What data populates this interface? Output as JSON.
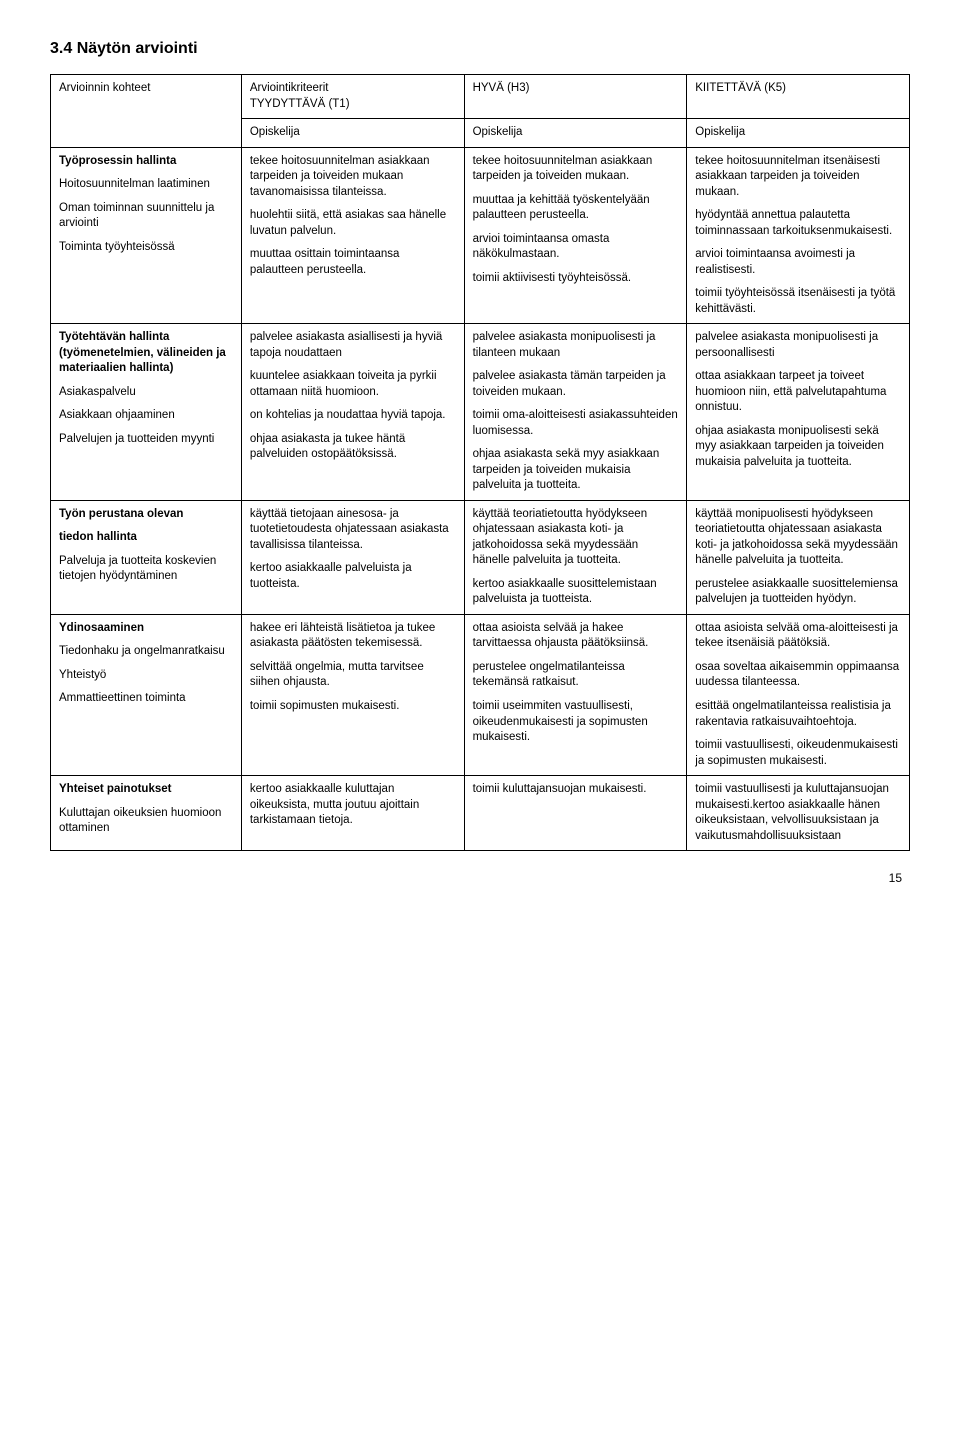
{
  "section_title": "3.4 Näytön arviointi",
  "page_number": "15",
  "table": {
    "header_row": {
      "c1": "Arvioinnin kohteet",
      "c2_line1": "Arviointikriteerit",
      "c2_line2": "TYYDYTTÄVÄ (T1)",
      "c3": "HYVÄ (H3)",
      "c4": "KIITETTÄVÄ (K5)"
    },
    "subheader": {
      "c2": "Opiskelija",
      "c3": "Opiskelija",
      "c4": "Opiskelija"
    },
    "rows": [
      {
        "c1": [
          {
            "b": true,
            "t": "Työprosessin hallinta"
          },
          {
            "b": false,
            "t": "Hoitosuunnitelman laatiminen"
          },
          {
            "b": false,
            "t": "Oman toiminnan suunnittelu ja arviointi"
          },
          {
            "b": false,
            "t": "Toiminta työyhteisössä"
          }
        ],
        "c2": [
          "tekee hoitosuunnitelman asiakkaan tarpeiden ja toiveiden mukaan tavanomaisissa tilanteissa.",
          "huolehtii siitä, että asiakas saa hänelle luvatun palvelun.",
          "muuttaa osittain toimintaansa palautteen perusteella."
        ],
        "c3": [
          "tekee hoitosuunnitelman asiakkaan tarpeiden ja toiveiden mukaan.",
          "muuttaa ja kehittää työskentelyään palautteen perusteella.",
          "arvioi toimintaansa omasta näkökulmastaan.",
          "toimii aktiivisesti työyhteisössä."
        ],
        "c4": [
          "tekee hoitosuunnitelman itsenäisesti asiakkaan tarpeiden ja toiveiden mukaan.",
          "hyödyntää annettua palautetta toiminnassaan tarkoituksenmukaisesti.",
          "arvioi toimintaansa avoimesti ja realistisesti.",
          "toimii työyhteisössä itsenäisesti ja työtä kehittävästi."
        ]
      },
      {
        "c1": [
          {
            "b": true,
            "t": "Työtehtävän hallinta (työmenetelmien, välineiden ja materiaalien hallinta)"
          },
          {
            "b": false,
            "t": "Asiakaspalvelu"
          },
          {
            "b": false,
            "t": "Asiakkaan ohjaaminen"
          },
          {
            "b": false,
            "t": "Palvelujen ja tuotteiden myynti"
          }
        ],
        "c2": [
          "palvelee asiakasta asiallisesti ja hyviä tapoja noudattaen",
          "kuuntelee asiakkaan toiveita ja pyrkii ottamaan niitä huomioon.",
          "on kohtelias ja noudattaa hyviä tapoja.",
          "ohjaa asiakasta ja tukee häntä palveluiden ostopäätöksissä."
        ],
        "c3": [
          "palvelee asiakasta monipuolisesti ja tilanteen mukaan",
          "palvelee asiakasta tämän tarpeiden ja toiveiden mukaan.",
          "toimii oma-aloitteisesti asiakassuhteiden luomisessa.",
          "ohjaa asiakasta sekä myy asiakkaan tarpeiden ja toiveiden mukaisia palveluita ja tuotteita."
        ],
        "c4": [
          "palvelee asiakasta monipuolisesti ja persoonallisesti",
          "ottaa asiakkaan tarpeet ja toiveet huomioon niin, että palvelutapahtuma onnistuu.",
          "ohjaa asiakasta monipuolisesti sekä myy asiakkaan tarpeiden ja toiveiden mukaisia palveluita ja tuotteita."
        ]
      },
      {
        "c1": [
          {
            "b": true,
            "t": "Työn perustana olevan"
          },
          {
            "b": true,
            "t": "tiedon hallinta"
          },
          {
            "b": false,
            "t": "Palveluja ja tuotteita koskevien tietojen hyödyntäminen"
          }
        ],
        "c2": [
          "käyttää tietojaan ainesosa- ja tuotetietoudesta ohjatessaan asiakasta tavallisissa tilanteissa.",
          "kertoo asiakkaalle palveluista ja tuotteista."
        ],
        "c3": [
          "käyttää teoriatietoutta hyödykseen ohjatessaan asiakasta koti- ja jatkohoidossa sekä myydessään hänelle palveluita ja tuotteita.",
          "kertoo asiakkaalle suosittelemistaan palveluista ja tuotteista."
        ],
        "c4": [
          "käyttää monipuolisesti hyödykseen teoriatietoutta ohjatessaan asiakasta koti- ja jatkohoidossa sekä myydessään hänelle palveluita ja tuotteita.",
          "perustelee asiakkaalle suosittelemiensa palvelujen ja tuotteiden hyödyn."
        ]
      },
      {
        "c1": [
          {
            "b": true,
            "t": "Ydinosaaminen"
          },
          {
            "b": false,
            "t": "Tiedonhaku ja ongelmanratkaisu"
          },
          {
            "b": false,
            "t": "Yhteistyö"
          },
          {
            "b": false,
            "t": "Ammattieettinen toiminta"
          }
        ],
        "c2": [
          "hakee eri lähteistä lisätietoa ja tukee asiakasta päätösten tekemisessä.",
          "selvittää ongelmia, mutta tarvitsee siihen ohjausta.",
          "toimii sopimusten mukaisesti."
        ],
        "c3": [
          "ottaa asioista selvää ja hakee tarvittaessa ohjausta päätöksiinsä.",
          "perustelee ongelmatilanteissa tekemänsä ratkaisut.",
          "toimii useimmiten vastuullisesti, oikeudenmukaisesti ja sopimusten mukaisesti."
        ],
        "c4": [
          "ottaa asioista selvää oma-aloitteisesti ja tekee itsenäisiä päätöksiä.",
          "osaa soveltaa aikaisemmin oppimaansa uudessa tilanteessa.",
          "esittää ongelmatilanteissa realistisia ja rakentavia ratkaisuvaihtoehtoja.",
          "toimii vastuullisesti, oikeudenmukaisesti ja sopimusten mukaisesti."
        ]
      },
      {
        "c1": [
          {
            "b": true,
            "t": "Yhteiset painotukset"
          },
          {
            "b": false,
            "t": "Kuluttajan oikeuksien huomioon ottaminen"
          }
        ],
        "c2": [
          "kertoo asiakkaalle kuluttajan oikeuksista, mutta joutuu ajoittain tarkistamaan tietoja."
        ],
        "c3": [
          "toimii kuluttajansuojan mukaisesti."
        ],
        "c4": [
          "toimii vastuullisesti ja kuluttajansuojan mukaisesti.kertoo asiakkaalle hänen oikeuksistaan, velvollisuuksistaan ja vaikutusmahdollisuuksistaan"
        ]
      }
    ]
  }
}
